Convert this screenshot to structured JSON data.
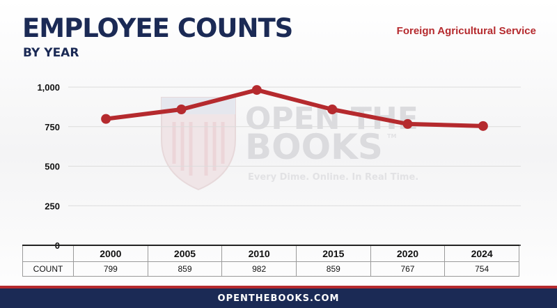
{
  "header": {
    "title": "EMPLOYEE COUNTS",
    "subtitle": "BY YEAR",
    "agency": "Foreign Agricultural Service"
  },
  "watermark": {
    "line1": "OPEN THE",
    "line2": "BOOKS",
    "tagline": "Every Dime. Online. In Real Time.",
    "trademark": "TM"
  },
  "table": {
    "row_label": "COUNT"
  },
  "footer": {
    "text": "OPENTHEBOOKS.COM"
  },
  "colors": {
    "line": "#b52a2e",
    "navy": "#1b2a55"
  },
  "chart_data": {
    "type": "line",
    "categories": [
      "2000",
      "2005",
      "2010",
      "2015",
      "2020",
      "2024"
    ],
    "values": [
      799,
      859,
      982,
      859,
      767,
      754
    ],
    "value_labels": [
      "799",
      "859",
      "982",
      "859",
      "767",
      "754"
    ],
    "yticks": [
      "0",
      "250",
      "500",
      "750",
      "1,000"
    ],
    "ytick_values": [
      0,
      250,
      500,
      750,
      1000
    ],
    "ylim": [
      0,
      1000
    ],
    "grid": true,
    "legend": "none"
  }
}
